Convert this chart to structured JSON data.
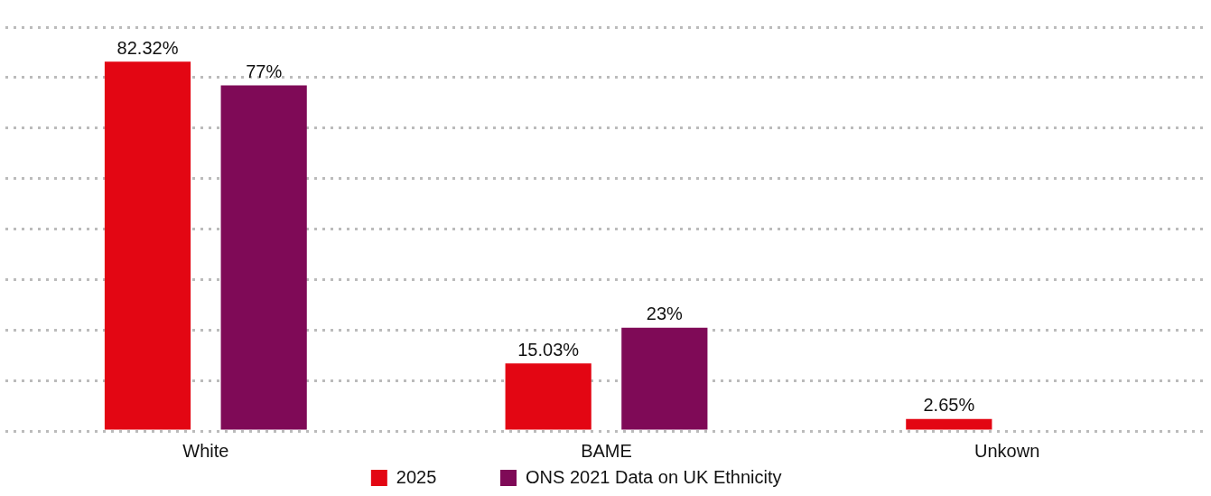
{
  "chart_data": {
    "type": "bar",
    "categories": [
      "White",
      "BAME",
      "Unkown"
    ],
    "series": [
      {
        "name": "2025",
        "color": "#e30613",
        "values": [
          82.32,
          15.03,
          2.65
        ],
        "value_labels": [
          "82.32%",
          "15.03%",
          "2.65%"
        ]
      },
      {
        "name": "ONS 2021 Data on UK Ethnicity",
        "color": "#7f0a57",
        "values": [
          77,
          23,
          null
        ],
        "value_labels": [
          "77%",
          "23%",
          null
        ]
      }
    ],
    "tick_labels": "x",
    "grid": "y",
    "legend": "bottom"
  }
}
